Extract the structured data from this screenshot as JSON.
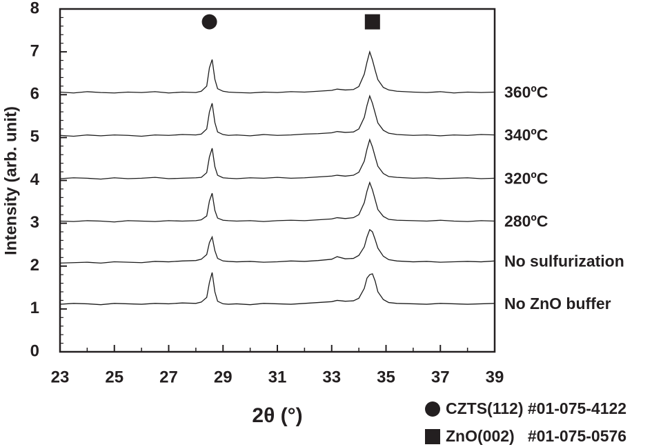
{
  "chart_data": {
    "type": "line",
    "xlabel": "2θ (°)",
    "ylabel": "Intensity (arb. unit)",
    "xlim": [
      23,
      39
    ],
    "xticks": [
      23,
      25,
      27,
      29,
      31,
      33,
      35,
      37,
      39
    ],
    "x_minor_step": 1,
    "ylim": [
      0,
      8
    ],
    "yticks": [
      0,
      1,
      2,
      3,
      4,
      5,
      6,
      7,
      8
    ],
    "y_minor_step": 0.2,
    "x": [
      23,
      23.5,
      24,
      24.5,
      25,
      25.5,
      26,
      26.5,
      27,
      27.5,
      28,
      28.2,
      28.4,
      28.5,
      28.6,
      28.7,
      28.8,
      29,
      29.2,
      29.5,
      30,
      30.5,
      31,
      31.5,
      32,
      32.5,
      33,
      33.2,
      33.5,
      33.8,
      34,
      34.2,
      34.3,
      34.4,
      34.5,
      34.6,
      34.7,
      34.9,
      35.1,
      35.4,
      36,
      36.5,
      37,
      37.5,
      38,
      38.5,
      39
    ],
    "series": [
      {
        "name": "360ºC",
        "color": "#1a1a1a",
        "values": [
          6.06,
          6.04,
          6.07,
          6.05,
          6.04,
          6.06,
          6.05,
          6.07,
          6.04,
          6.06,
          6.05,
          6.08,
          6.2,
          6.63,
          6.82,
          6.36,
          6.14,
          6.08,
          6.06,
          6.05,
          6.04,
          6.06,
          6.05,
          6.07,
          6.06,
          6.08,
          6.1,
          6.13,
          6.11,
          6.12,
          6.19,
          6.48,
          6.76,
          7.0,
          6.81,
          6.57,
          6.35,
          6.17,
          6.11,
          6.08,
          6.06,
          6.05,
          6.07,
          6.04,
          6.06,
          6.05,
          6.06
        ]
      },
      {
        "name": "340ºC",
        "color": "#1a1a1a",
        "values": [
          5.05,
          5.03,
          5.06,
          5.04,
          5.06,
          5.05,
          5.03,
          5.06,
          5.05,
          5.07,
          5.06,
          5.08,
          5.2,
          5.6,
          5.8,
          5.35,
          5.13,
          5.07,
          5.05,
          5.06,
          5.04,
          5.07,
          5.05,
          5.06,
          5.08,
          5.09,
          5.11,
          5.14,
          5.12,
          5.13,
          5.2,
          5.47,
          5.75,
          5.97,
          5.8,
          5.57,
          5.34,
          5.17,
          5.1,
          5.07,
          5.05,
          5.06,
          5.04,
          5.06,
          5.05,
          5.07,
          5.06
        ]
      },
      {
        "name": "320ºC",
        "color": "#1a1a1a",
        "values": [
          4.04,
          4.06,
          4.05,
          4.03,
          4.06,
          4.04,
          4.05,
          4.07,
          4.04,
          4.05,
          4.06,
          4.07,
          4.18,
          4.55,
          4.75,
          4.32,
          4.12,
          4.06,
          4.05,
          4.04,
          4.06,
          4.05,
          4.07,
          4.05,
          4.06,
          4.08,
          4.1,
          4.12,
          4.1,
          4.12,
          4.19,
          4.45,
          4.73,
          4.95,
          4.78,
          4.55,
          4.33,
          4.16,
          4.09,
          4.07,
          4.05,
          4.06,
          4.04,
          4.05,
          4.06,
          4.04,
          4.05
        ]
      },
      {
        "name": "280ºC",
        "color": "#1a1a1a",
        "values": [
          3.05,
          3.04,
          3.06,
          3.05,
          3.03,
          3.06,
          3.05,
          3.04,
          3.06,
          3.05,
          3.06,
          3.08,
          3.17,
          3.52,
          3.7,
          3.3,
          3.12,
          3.07,
          3.06,
          3.05,
          3.06,
          3.04,
          3.06,
          3.07,
          3.06,
          3.08,
          3.1,
          3.13,
          3.11,
          3.13,
          3.2,
          3.48,
          3.75,
          3.95,
          3.78,
          3.55,
          3.32,
          3.16,
          3.09,
          3.07,
          3.06,
          3.05,
          3.07,
          3.05,
          3.04,
          3.06,
          3.05
        ]
      },
      {
        "name": "No sulfurization",
        "color": "#1a1a1a",
        "values": [
          2.07,
          2.08,
          2.09,
          2.07,
          2.1,
          2.09,
          2.08,
          2.11,
          2.1,
          2.12,
          2.13,
          2.16,
          2.27,
          2.55,
          2.68,
          2.36,
          2.18,
          2.12,
          2.11,
          2.1,
          2.11,
          2.09,
          2.1,
          2.12,
          2.11,
          2.13,
          2.16,
          2.22,
          2.17,
          2.18,
          2.25,
          2.45,
          2.68,
          2.85,
          2.8,
          2.62,
          2.42,
          2.23,
          2.15,
          2.12,
          2.1,
          2.11,
          2.09,
          2.1,
          2.11,
          2.1,
          2.12
        ]
      },
      {
        "name": "No ZnO buffer",
        "color": "#1a1a1a",
        "values": [
          1.11,
          1.13,
          1.12,
          1.1,
          1.13,
          1.12,
          1.11,
          1.13,
          1.12,
          1.14,
          1.13,
          1.16,
          1.27,
          1.62,
          1.85,
          1.4,
          1.18,
          1.12,
          1.11,
          1.12,
          1.1,
          1.13,
          1.12,
          1.11,
          1.13,
          1.15,
          1.17,
          1.2,
          1.18,
          1.19,
          1.25,
          1.48,
          1.72,
          1.8,
          1.82,
          1.65,
          1.4,
          1.22,
          1.15,
          1.13,
          1.12,
          1.11,
          1.13,
          1.12,
          1.11,
          1.12,
          1.13
        ]
      }
    ],
    "markers": [
      {
        "symbol": "circle",
        "x": 28.5,
        "y": 7.7,
        "label": "CZTS(112) #01-075-4122"
      },
      {
        "symbol": "square",
        "x": 34.5,
        "y": 7.7,
        "label": "ZnO(002)   #01-075-0576"
      }
    ]
  }
}
